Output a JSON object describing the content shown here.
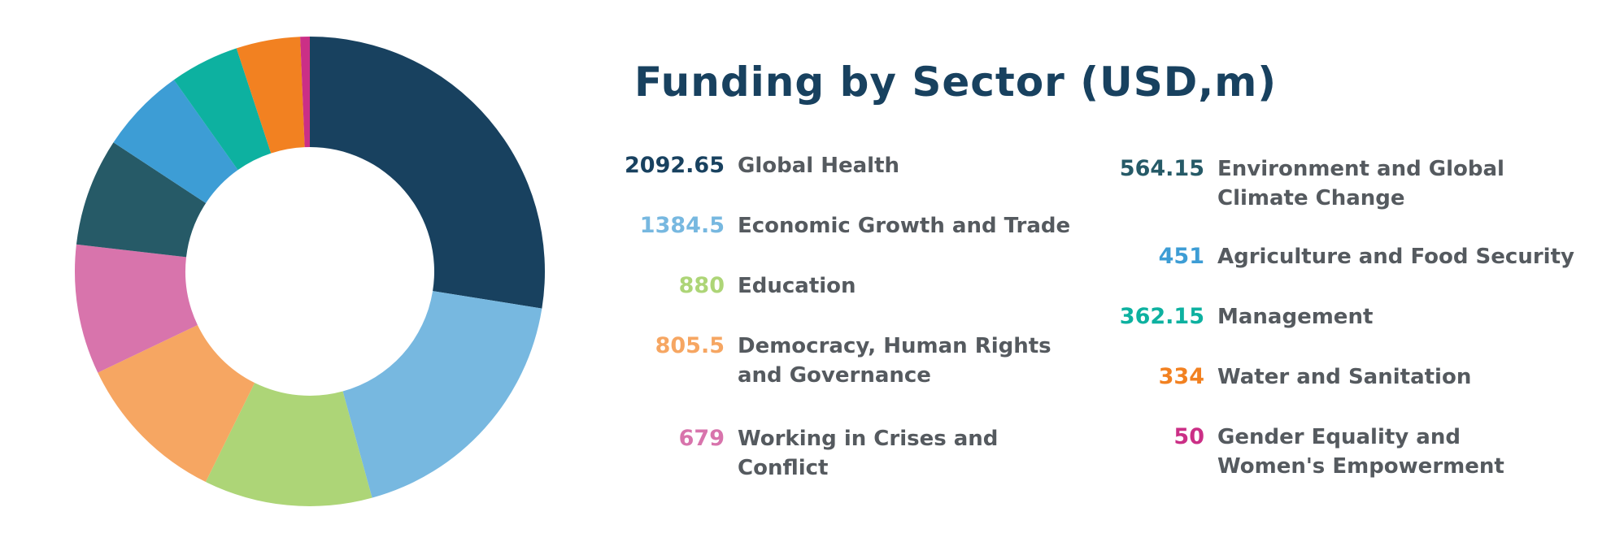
{
  "chart_data": {
    "type": "pie",
    "title": "Funding by Sector (USD,m)",
    "donut": true,
    "categories": [
      "Global Health",
      "Economic Growth and Trade",
      "Education",
      "Democracy, Human Rights and Governance",
      "Working in Crises and Conflict",
      "Environment and Global Climate Change",
      "Agriculture and Food Security",
      "Management",
      "Water and Sanitation",
      "Gender Equality and Women's Empowerment"
    ],
    "values": [
      2092.65,
      1384.5,
      880,
      805.5,
      679,
      564.15,
      451,
      362.15,
      334,
      50
    ],
    "value_labels": [
      "2092.65",
      "1384.5",
      "880",
      "805.5",
      "679",
      "564.15",
      "451",
      "362.15",
      "334",
      "50"
    ],
    "colors": [
      "#18415f",
      "#77b8e0",
      "#add577",
      "#f6a662",
      "#d874ac",
      "#265a67",
      "#3d9dd5",
      "#0db1a0",
      "#f28121",
      "#cb2f86"
    ],
    "legend_placement": "right"
  }
}
